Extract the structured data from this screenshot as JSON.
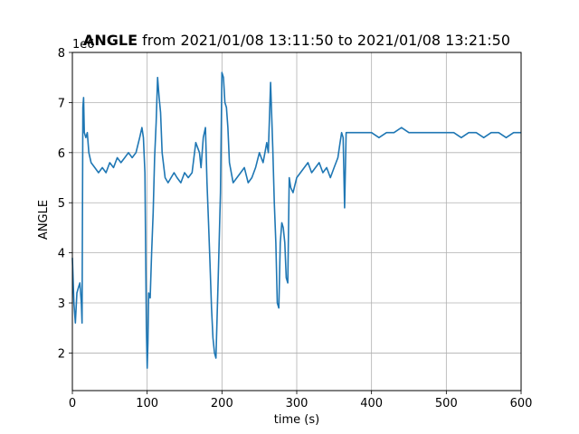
{
  "chart_data": {
    "type": "line",
    "title_bold": "ANGLE",
    "title_rest": " from 2021/01/08 13:11:50 to 2021/01/08 13:21:50",
    "xlabel": "time (s)",
    "ylabel": "ANGLE",
    "y_offset_label": "1e6",
    "xlim": [
      0,
      600
    ],
    "ylim": [
      1.25,
      8.0
    ],
    "x_ticks": [
      0,
      100,
      200,
      300,
      400,
      500,
      600
    ],
    "y_ticks": [
      2,
      3,
      4,
      5,
      6,
      7,
      8
    ],
    "grid": true,
    "line_color": "#1f77b4",
    "series": [
      {
        "x": [
          0,
          2,
          4,
          6,
          8,
          10,
          12,
          13,
          14,
          15,
          16,
          18,
          20,
          22,
          25,
          30,
          35,
          40,
          45,
          50,
          55,
          60,
          65,
          70,
          75,
          80,
          85,
          90,
          93,
          95,
          97,
          99,
          100,
          101,
          102,
          104,
          106,
          108,
          110,
          112,
          114,
          116,
          118,
          120,
          124,
          128,
          132,
          136,
          140,
          145,
          150,
          155,
          160,
          165,
          170,
          172,
          175,
          178,
          180,
          182,
          184,
          186,
          188,
          190,
          192,
          195,
          198,
          200,
          202,
          204,
          206,
          208,
          210,
          215,
          220,
          225,
          230,
          235,
          240,
          245,
          250,
          255,
          260,
          262,
          265,
          268,
          270,
          272,
          274,
          276,
          278,
          280,
          282,
          284,
          286,
          288,
          290,
          292,
          295,
          300,
          305,
          310,
          315,
          320,
          325,
          330,
          335,
          340,
          345,
          350,
          355,
          358,
          360,
          362,
          364,
          366,
          370,
          380,
          390,
          400,
          410,
          420,
          430,
          440,
          450,
          460,
          470,
          480,
          490,
          500,
          510,
          520,
          530,
          540,
          550,
          560,
          570,
          580,
          590,
          600
        ],
        "values": [
          3.9,
          3.0,
          2.6,
          3.2,
          3.3,
          3.4,
          3.0,
          2.6,
          6.9,
          7.1,
          6.4,
          6.3,
          6.4,
          6.0,
          5.8,
          5.7,
          5.6,
          5.7,
          5.6,
          5.8,
          5.7,
          5.9,
          5.8,
          5.9,
          6.0,
          5.9,
          6.0,
          6.3,
          6.5,
          6.3,
          5.6,
          2.5,
          1.7,
          2.2,
          3.2,
          3.1,
          4.0,
          4.8,
          5.9,
          6.6,
          7.5,
          7.1,
          6.8,
          6.0,
          5.5,
          5.4,
          5.5,
          5.6,
          5.5,
          5.4,
          5.6,
          5.5,
          5.6,
          6.2,
          6.0,
          5.7,
          6.3,
          6.5,
          5.4,
          4.6,
          3.8,
          2.9,
          2.3,
          2.0,
          1.9,
          3.5,
          5.2,
          7.6,
          7.5,
          7.0,
          6.9,
          6.5,
          5.8,
          5.4,
          5.5,
          5.6,
          5.7,
          5.4,
          5.5,
          5.7,
          6.0,
          5.8,
          6.2,
          6.0,
          7.4,
          6.1,
          5.0,
          4.2,
          3.0,
          2.9,
          4.2,
          4.6,
          4.5,
          4.2,
          3.5,
          3.4,
          5.5,
          5.3,
          5.2,
          5.5,
          5.6,
          5.7,
          5.8,
          5.6,
          5.7,
          5.8,
          5.6,
          5.7,
          5.5,
          5.7,
          5.9,
          6.2,
          6.4,
          6.3,
          4.9,
          6.4,
          6.4,
          6.4,
          6.4,
          6.4,
          6.3,
          6.4,
          6.4,
          6.5,
          6.4,
          6.4,
          6.4,
          6.4,
          6.4,
          6.4,
          6.4,
          6.3,
          6.4,
          6.4,
          6.3,
          6.4,
          6.4,
          6.3,
          6.4,
          6.4
        ]
      }
    ]
  }
}
